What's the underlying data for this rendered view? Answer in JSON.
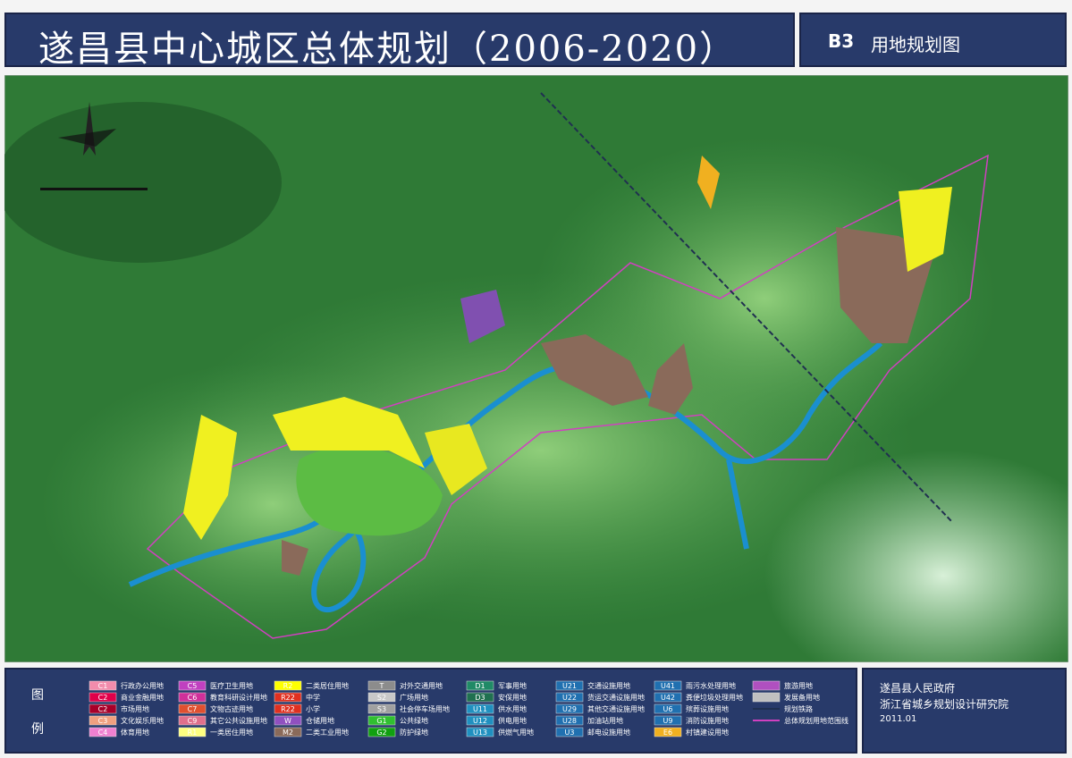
{
  "header": {
    "title": "遂昌县中心城区总体规划（2006-2020）",
    "sheet": "B3",
    "sheet_title": "用地规划图"
  },
  "legend": {
    "heading": [
      "图",
      "例"
    ],
    "columns": [
      [
        {
          "code": "C1",
          "label": "行政办公用地",
          "color": "#f28cac"
        },
        {
          "code": "C2",
          "label": "商业金融用地",
          "color": "#e0004a"
        },
        {
          "code": "C2",
          "label": "市场用地",
          "color": "#a8002a"
        },
        {
          "code": "C3",
          "label": "文化娱乐用地",
          "color": "#f0a080"
        },
        {
          "code": "C4",
          "label": "体育用地",
          "color": "#f080d0"
        }
      ],
      [
        {
          "code": "C5",
          "label": "医疗卫生用地",
          "color": "#c040c0"
        },
        {
          "code": "C6",
          "label": "教育科研设计用地",
          "color": "#d0309a"
        },
        {
          "code": "C7",
          "label": "文物古迹用地",
          "color": "#e05030"
        },
        {
          "code": "C9",
          "label": "其它公共设施用地",
          "color": "#e0708c"
        },
        {
          "code": "R1",
          "label": "一类居住用地",
          "color": "#ffff80"
        }
      ],
      [
        {
          "code": "R2",
          "label": "二类居住用地",
          "color": "#ffff00"
        },
        {
          "code": "R22",
          "label": "中学",
          "color": "#e03020"
        },
        {
          "code": "R22",
          "label": "小学",
          "color": "#e03020"
        },
        {
          "code": "W",
          "label": "仓储用地",
          "color": "#9050c0"
        },
        {
          "code": "M2",
          "label": "二类工业用地",
          "color": "#8a6a5a"
        }
      ],
      [
        {
          "code": "T",
          "label": "对外交通用地",
          "color": "#8c8c8c"
        },
        {
          "code": "S2",
          "label": "广场用地",
          "color": "#c8c8c8"
        },
        {
          "code": "S3",
          "label": "社会停车场用地",
          "color": "#a0a0a0"
        },
        {
          "code": "G1",
          "label": "公共绿地",
          "color": "#30c030"
        },
        {
          "code": "G2",
          "label": "防护绿地",
          "color": "#10a010"
        }
      ],
      [
        {
          "code": "D1",
          "label": "军事用地",
          "color": "#208a66"
        },
        {
          "code": "D3",
          "label": "安保用地",
          "color": "#207050"
        },
        {
          "code": "U11",
          "label": "供水用地",
          "color": "#2090c0"
        },
        {
          "code": "U12",
          "label": "供电用地",
          "color": "#2090c0"
        },
        {
          "code": "U13",
          "label": "供燃气用地",
          "color": "#2090c0"
        }
      ],
      [
        {
          "code": "U21",
          "label": "交通设施用地",
          "color": "#2070b0"
        },
        {
          "code": "U22",
          "label": "货运交通设施用地",
          "color": "#2070b0"
        },
        {
          "code": "U29",
          "label": "其他交通设施用地",
          "color": "#2070b0"
        },
        {
          "code": "U28",
          "label": "加油站用地",
          "color": "#2070b0"
        },
        {
          "code": "U3",
          "label": "邮电设施用地",
          "color": "#2070b0"
        }
      ],
      [
        {
          "code": "U41",
          "label": "雨污水处理用地",
          "color": "#2070b0"
        },
        {
          "code": "U42",
          "label": "粪便垃圾处理用地",
          "color": "#2070b0"
        },
        {
          "code": "U6",
          "label": "殡葬设施用地",
          "color": "#2070b0"
        },
        {
          "code": "U9",
          "label": "消防设施用地",
          "color": "#2070b0"
        },
        {
          "code": "E6",
          "label": "村镇建设用地",
          "color": "#f0b020"
        }
      ],
      [
        {
          "label": "旅游用地",
          "color": "#b050c0"
        },
        {
          "label": "发展备用地",
          "color": "#c0c0c0"
        },
        {
          "label": "规划铁路",
          "color": "#203050",
          "style": "line"
        },
        {
          "label": "总体规划用地范围线",
          "color": "#d040c0",
          "style": "line"
        }
      ]
    ]
  },
  "footer": {
    "lines": [
      "遂昌县人民政府",
      "浙江省城乡规划设计研究院",
      "2011.01"
    ]
  }
}
